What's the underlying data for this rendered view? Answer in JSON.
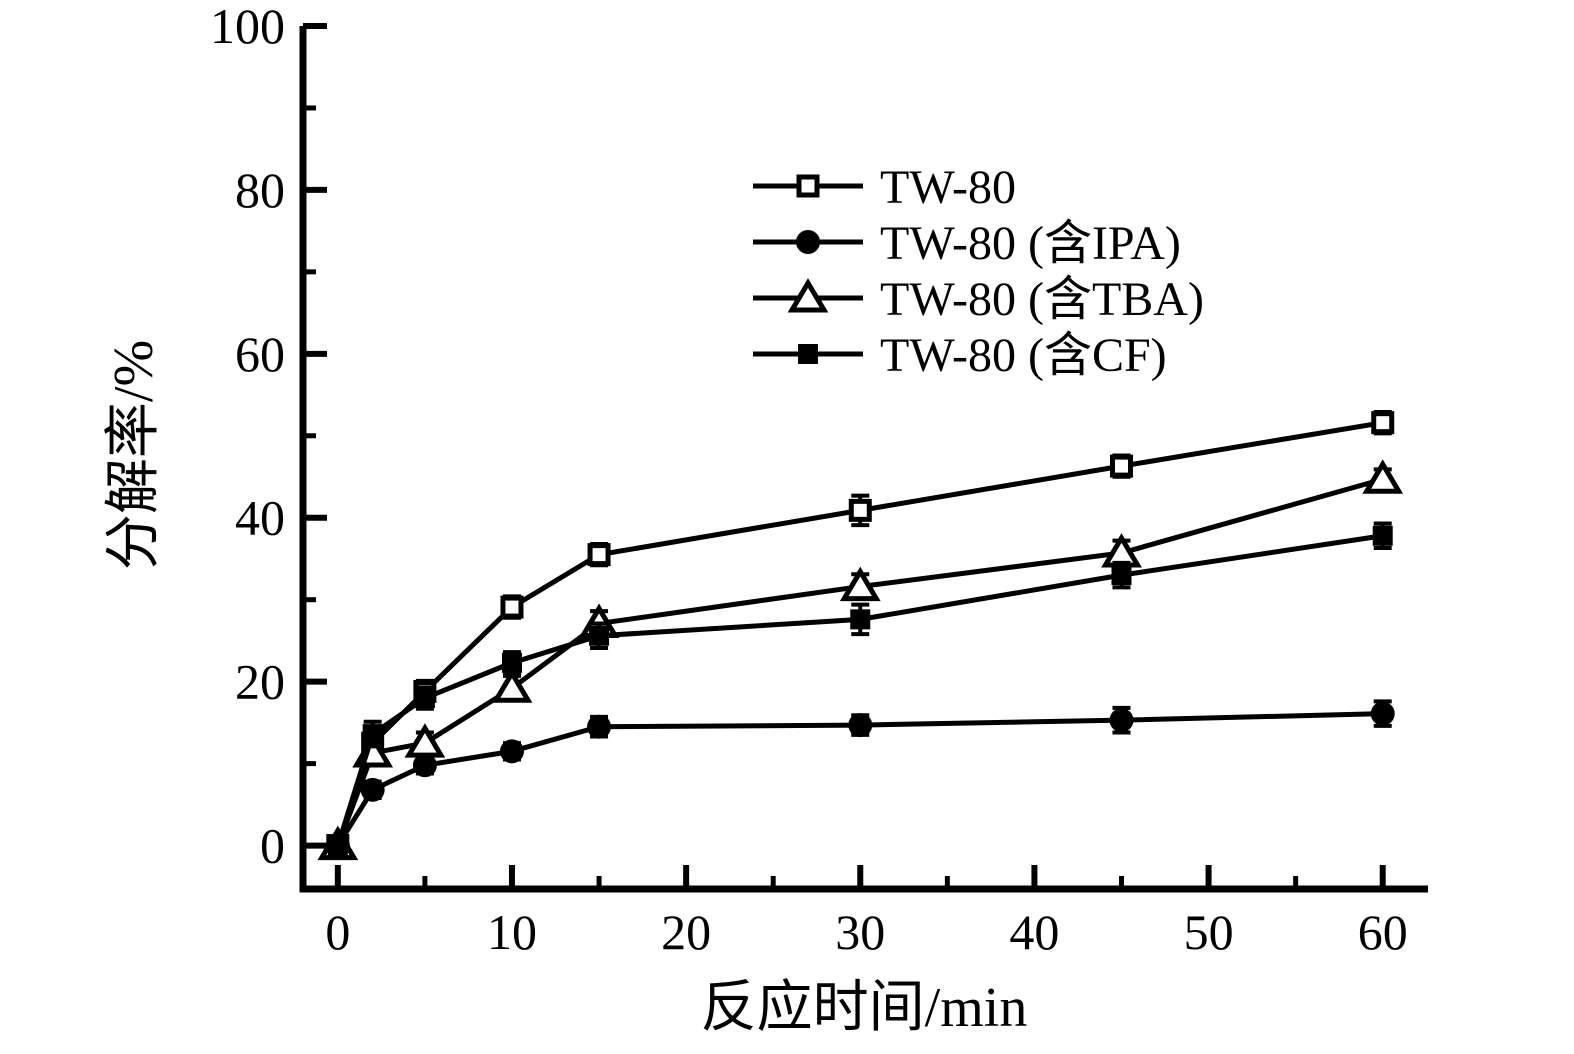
{
  "chart_data": {
    "type": "line",
    "title": "",
    "xlabel": "反应时间/min",
    "ylabel": "分解率/%",
    "x": [
      0,
      2,
      5,
      10,
      15,
      30,
      45,
      60
    ],
    "xlim": [
      -2,
      62.6
    ],
    "ylim": [
      -5.3,
      100
    ],
    "x_major_ticks": [
      0,
      10,
      20,
      30,
      40,
      50,
      60
    ],
    "x_minor_ticks": [
      5,
      15,
      25,
      35,
      45,
      55
    ],
    "y_major_ticks": [
      0,
      20,
      40,
      60,
      80,
      100
    ],
    "y_minor_ticks": [
      10,
      30,
      50,
      70,
      90
    ],
    "grid": false,
    "legend_position": "upper-right-inside",
    "colors": {
      "foreground": "#000000",
      "background": "#ffffff"
    },
    "series": [
      {
        "name": "TW-80",
        "marker": "open-square",
        "values": [
          0,
          12.5,
          18.8,
          29.1,
          35.5,
          40.9,
          46.3,
          51.6
        ],
        "errors": [
          0.8,
          1.5,
          1.3,
          1.3,
          1.3,
          1.8,
          1.3,
          1.3
        ]
      },
      {
        "name": "TW-80 (含IPA)",
        "marker": "filled-circle",
        "values": [
          0,
          6.8,
          9.8,
          11.5,
          14.5,
          14.7,
          15.3,
          16.1
        ],
        "errors": [
          0.8,
          1.0,
          1.0,
          1.0,
          1.2,
          1.2,
          1.5,
          1.5
        ]
      },
      {
        "name": "TW-80 (含TBA)",
        "marker": "open-triangle",
        "values": [
          0,
          11.3,
          12.5,
          19.2,
          27.1,
          31.6,
          35.7,
          44.7
        ],
        "errors": [
          0.8,
          1.5,
          1.3,
          1.5,
          1.5,
          1.5,
          1.5,
          1.2
        ]
      },
      {
        "name": "TW-80 (含CF)",
        "marker": "filled-square",
        "values": [
          0,
          13.6,
          18.0,
          22.3,
          25.6,
          27.6,
          33.0,
          37.8
        ],
        "errors": [
          0.8,
          1.5,
          1.3,
          1.3,
          1.5,
          1.8,
          1.5,
          1.5
        ]
      }
    ]
  }
}
